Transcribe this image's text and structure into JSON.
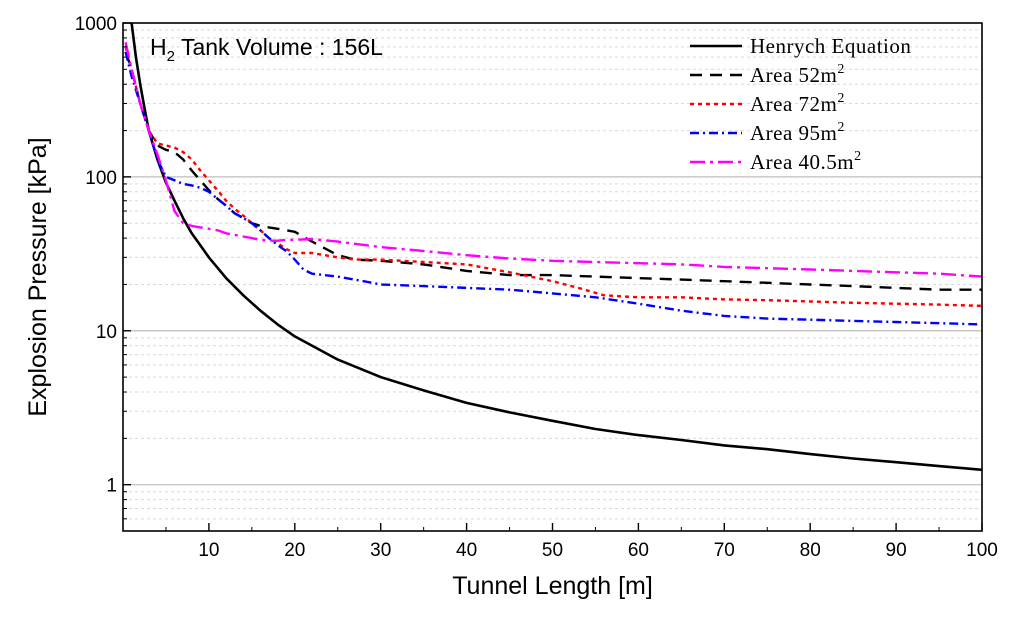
{
  "chart_data": {
    "type": "line",
    "title": "",
    "annotation": {
      "prefix": "H",
      "subscript": "2",
      "rest": " Tank Volume : 156L"
    },
    "xlabel": "Tunnel Length [m]",
    "ylabel": "Explosion Pressure [kPa]",
    "xlim": [
      0,
      100
    ],
    "ylim": [
      0.5,
      1000
    ],
    "yscale": "log",
    "xticks": [
      10,
      20,
      30,
      40,
      50,
      60,
      70,
      80,
      90,
      100
    ],
    "xtick_labels": [
      "10",
      "20",
      "30",
      "40",
      "50",
      "60",
      "70",
      "80",
      "90",
      "100"
    ],
    "yticks": [
      1,
      10,
      100,
      1000
    ],
    "ytick_labels": [
      "1",
      "10",
      "100",
      "1000"
    ],
    "grid": true,
    "legend_position": "top-right",
    "series": [
      {
        "name": "Henrych Equation",
        "label_base": "Henrych Equation",
        "label_sup": "",
        "color": "#000000",
        "dash": "solid",
        "x": [
          1,
          1.5,
          2,
          2.5,
          3,
          4,
          5,
          6,
          7,
          8,
          9,
          10,
          12,
          14,
          16,
          18,
          20,
          25,
          30,
          35,
          40,
          45,
          50,
          55,
          60,
          65,
          70,
          75,
          80,
          85,
          90,
          95,
          100
        ],
        "y": [
          1000,
          600,
          400,
          280,
          200,
          130,
          92,
          70,
          54,
          43,
          36,
          30,
          22,
          17,
          13.5,
          11,
          9.2,
          6.5,
          5.0,
          4.1,
          3.4,
          2.95,
          2.6,
          2.3,
          2.1,
          1.95,
          1.8,
          1.7,
          1.58,
          1.48,
          1.4,
          1.32,
          1.25
        ]
      },
      {
        "name": "Area 52m2",
        "label_base": "Area 52m",
        "label_sup": "2",
        "color": "#000000",
        "dash": "long",
        "x": [
          0.3,
          1,
          2,
          3,
          4,
          5,
          6,
          7,
          8,
          9,
          10,
          11,
          12,
          13,
          14,
          15,
          16,
          17,
          18,
          19,
          20,
          22,
          25,
          27,
          30,
          35,
          40,
          45,
          50,
          55,
          60,
          65,
          70,
          75,
          80,
          85,
          90,
          95,
          100
        ],
        "y": [
          650,
          500,
          300,
          200,
          160,
          150,
          145,
          130,
          110,
          95,
          82,
          72,
          65,
          58,
          54,
          50,
          48,
          47,
          46,
          45,
          44,
          38,
          31,
          29,
          28.5,
          27,
          24.5,
          23,
          23,
          22.5,
          22,
          21.5,
          21,
          20.5,
          20,
          19.5,
          19,
          18.5,
          18.5
        ]
      },
      {
        "name": "Area 72m2",
        "label_base": "Area 72m",
        "label_sup": "2",
        "color": "#ff0000",
        "dash": "short",
        "x": [
          0.3,
          1,
          2,
          3,
          4,
          5,
          6,
          7,
          8,
          9,
          10,
          11,
          12,
          13,
          14,
          15,
          16,
          17,
          18,
          19,
          20,
          22,
          25,
          27,
          30,
          35,
          40,
          45,
          50,
          53,
          56,
          60,
          65,
          70,
          75,
          80,
          85,
          90,
          95,
          100
        ],
        "y": [
          700,
          500,
          300,
          200,
          165,
          160,
          155,
          145,
          130,
          110,
          95,
          82,
          70,
          62,
          56,
          50,
          45,
          40,
          37,
          34,
          32,
          32,
          30,
          29,
          29,
          28,
          27,
          24,
          21,
          19,
          17,
          16.5,
          16.5,
          16,
          15.8,
          15.5,
          15.2,
          15,
          14.8,
          14.5
        ]
      },
      {
        "name": "Area 95m2",
        "label_base": "Area 95m",
        "label_sup": "2",
        "color": "#0000ff",
        "dash": "dashdot",
        "x": [
          0.3,
          1,
          2,
          3,
          4,
          5,
          6,
          7,
          8,
          9,
          10,
          11,
          12,
          13,
          14,
          15,
          16,
          17,
          18,
          19,
          20,
          21,
          22,
          25,
          28,
          30,
          35,
          40,
          45,
          50,
          55,
          60,
          65,
          70,
          75,
          80,
          85,
          90,
          95,
          100
        ],
        "y": [
          650,
          450,
          300,
          200,
          130,
          100,
          95,
          90,
          88,
          85,
          80,
          72,
          65,
          58,
          54,
          50,
          45,
          40,
          36,
          33,
          29,
          25,
          23.5,
          22.5,
          21,
          20,
          19.5,
          19,
          18.5,
          17.5,
          16.5,
          15,
          13.5,
          12.5,
          12,
          11.8,
          11.6,
          11.4,
          11.2,
          11
        ]
      },
      {
        "name": "Area 40.5m2",
        "label_base": "Area 40.5m",
        "label_sup": "2",
        "color": "#ff00ff",
        "dash": "longdot",
        "x": [
          0.3,
          1,
          2,
          3,
          4,
          5,
          6,
          7,
          8,
          9,
          10,
          11,
          12,
          13,
          14,
          15,
          16,
          17,
          18,
          19,
          20,
          22,
          25,
          30,
          35,
          40,
          45,
          50,
          55,
          60,
          65,
          70,
          75,
          80,
          85,
          90,
          95,
          100
        ],
        "y": [
          750,
          500,
          300,
          200,
          140,
          95,
          60,
          50,
          48,
          47,
          46,
          45,
          43,
          42,
          41,
          40,
          39,
          38.5,
          38.5,
          39,
          39,
          39.5,
          38,
          35,
          33,
          31,
          29.5,
          28.5,
          28,
          27.5,
          27,
          26,
          25.5,
          25,
          24.5,
          24,
          23.5,
          22.5
        ]
      }
    ]
  }
}
